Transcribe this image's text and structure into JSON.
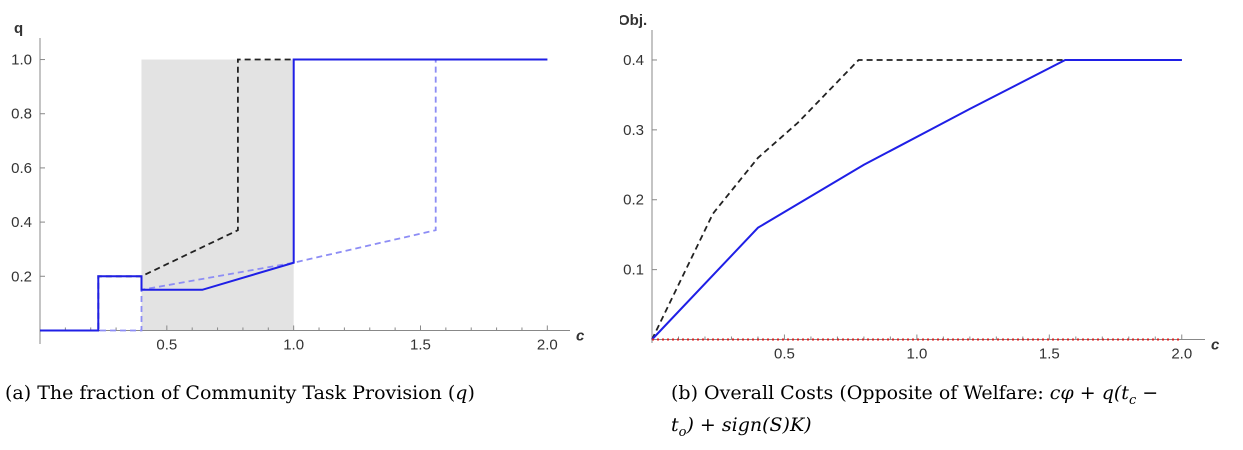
{
  "chart_data": [
    {
      "type": "line",
      "ylabel": "q",
      "xlabel": "c",
      "xlim": [
        0,
        2.05
      ],
      "ylim": [
        -0.05,
        1.05
      ],
      "x_ticks": [
        "0.5",
        "1.0",
        "1.5",
        "2.0"
      ],
      "y_ticks": [
        "0.2",
        "0.4",
        "0.6",
        "0.8",
        "1.0"
      ],
      "shaded_region": {
        "x": [
          0.4,
          1.0
        ],
        "y": [
          0,
          1.0
        ],
        "color": "#e3e3e3"
      },
      "series": [
        {
          "style": "dashed",
          "color": "#222222",
          "x": [
            0,
            0.23,
            0.23,
            0.4,
            0.4,
            0.78,
            0.78,
            1.0,
            2.0
          ],
          "y": [
            0,
            0,
            0.2,
            0.2,
            0.2,
            0.37,
            1.0,
            1.0,
            1.0
          ]
        },
        {
          "style": "dashed",
          "color": "#8d8df5",
          "x": [
            0,
            0.4,
            0.4,
            1.0,
            1.56,
            1.56,
            2.0
          ],
          "y": [
            0,
            0,
            0.15,
            0.25,
            0.37,
            1.0,
            1.0
          ]
        },
        {
          "style": "solid",
          "color": "#1f1fe6",
          "x": [
            0,
            0.23,
            0.23,
            0.4,
            0.4,
            0.64,
            1.0,
            1.0,
            2.0
          ],
          "y": [
            0,
            0,
            0.2,
            0.2,
            0.15,
            0.15,
            0.25,
            1.0,
            1.0
          ]
        }
      ]
    },
    {
      "type": "line",
      "ylabel": "Obj.",
      "xlabel": "c",
      "xlim": [
        0,
        2.05
      ],
      "ylim": [
        -0.005,
        0.42
      ],
      "x_ticks": [
        "0.5",
        "1.0",
        "1.5",
        "2.0"
      ],
      "y_ticks": [
        "0.1",
        "0.2",
        "0.3",
        "0.4"
      ],
      "series": [
        {
          "style": "dashed",
          "color": "#222222",
          "x": [
            0,
            0.23,
            0.4,
            0.55,
            0.78,
            2.0
          ],
          "y": [
            0,
            0.18,
            0.26,
            0.31,
            0.4,
            0.4
          ]
        },
        {
          "style": "solid",
          "color": "#1f1fe6",
          "x": [
            0,
            0.4,
            0.8,
            1.2,
            1.56,
            2.0
          ],
          "y": [
            0,
            0.16,
            0.25,
            0.33,
            0.4,
            0.4
          ]
        },
        {
          "style": "dotted",
          "color": "#e02020",
          "x": [
            0,
            2.0
          ],
          "y": [
            0,
            0
          ]
        }
      ]
    }
  ],
  "captions": {
    "a": {
      "label": "(a) The fraction of Community Task Provision (",
      "var": "q",
      "close": ")"
    },
    "b": {
      "line1_text": "(b) Overall Costs (Opposite of Welfare: ",
      "line1_math": "cφ + q(t",
      "line1_sub": "c",
      "line1_end": " −",
      "line2_math_a": "t",
      "line2_sub_a": "o",
      "line2_math_b": ") + sign(S)K)"
    }
  },
  "colors": {
    "shade": "#e3e3e3",
    "blue_solid": "#1f1fe6",
    "blue_dashed": "#8d8df5",
    "black_dashed": "#222222",
    "red_dotted": "#e02020",
    "axis": "#888888"
  }
}
